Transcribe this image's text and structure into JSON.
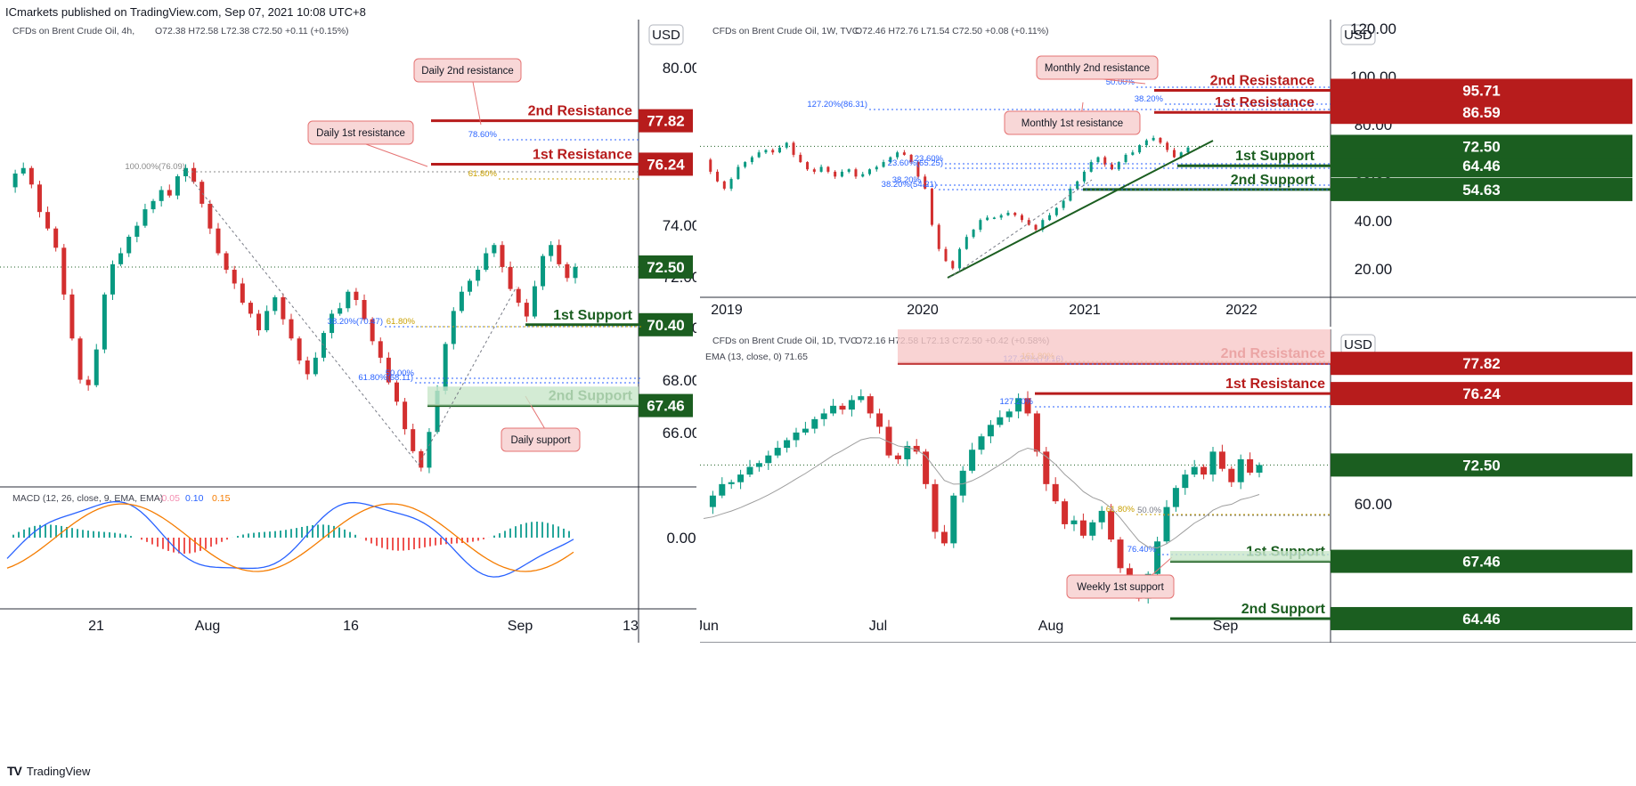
{
  "header": {
    "published": "ICmarkets published on TradingView.com, Sep 07, 2021 10:08 UTC+8"
  },
  "footer": {
    "brand": "TradingView"
  },
  "chart_data": [
    {
      "type": "candlestick",
      "title": "CFDs on Brent Crude Oil, 4h,",
      "ohlc": "O72.38  H72.58  L72.38  C72.50  +0.11 (+0.15%)",
      "currency": "USD",
      "ylim": [
        64.5,
        81.5
      ],
      "y_ticks": [
        "80.00",
        "74.00",
        "72.00",
        "70.00",
        "68.00",
        "66.00"
      ],
      "x_ticks": [
        "21",
        "Aug",
        "16",
        "Sep",
        "13"
      ],
      "levels": [
        {
          "name": "2nd Resistance",
          "value": "77.82",
          "kind": "resistance"
        },
        {
          "name": "1st Resistance",
          "value": "76.24",
          "kind": "resistance"
        },
        {
          "name": "1st Support",
          "value": "70.40",
          "kind": "support"
        },
        {
          "name": "2nd Support",
          "value": "67.46",
          "kind": "support"
        }
      ],
      "current_price": "72.50",
      "fib_labels": [
        "100.00%(76.09)",
        "78.60%",
        "61.80%",
        "38.20%(70.47)",
        "61.80%",
        "50.00%",
        "61.80%(68.11)"
      ],
      "callouts": [
        "Daily 2nd resistance",
        "Daily 1st resistance",
        "Daily support"
      ],
      "price_path": [
        75.4,
        75.9,
        76.1,
        75.5,
        74.5,
        73.9,
        73.2,
        71.5,
        69.9,
        68.4,
        68.2,
        69.5,
        71.5,
        72.6,
        73.0,
        73.6,
        74.0,
        74.6,
        74.9,
        75.3,
        75.1,
        75.8,
        76.1,
        75.6,
        74.8,
        73.9,
        73.0,
        72.4,
        71.9,
        71.2,
        70.8,
        70.2,
        70.9,
        71.4,
        70.6,
        69.9,
        69.1,
        68.6,
        69.2,
        70.1,
        70.8,
        71.0,
        71.6,
        71.3,
        70.6,
        69.8,
        69.2,
        68.3,
        67.6,
        66.6,
        65.8,
        65.2,
        66.5,
        68.0,
        69.7,
        70.9,
        71.6,
        72.0,
        72.4,
        73.0,
        73.3,
        72.5,
        71.7,
        71.2,
        70.7,
        71.8,
        72.9,
        73.3,
        72.6,
        72.1,
        72.5
      ],
      "macd": {
        "title": "MACD (12, 26, close, 9, EMA, EMA)",
        "values": [
          "-0.05",
          "0.10",
          "0.15"
        ],
        "tick": "0.00"
      }
    },
    {
      "type": "candlestick",
      "title": "CFDs on Brent Crude Oil, 1W, TVC",
      "ohlc": "O72.46  H72.76  L71.54  C72.50  +0.08 (+0.11%)",
      "currency": "USD",
      "ylim": [
        10,
        125
      ],
      "y_ticks": [
        "120.00",
        "100.00",
        "80.00",
        "60.00",
        "40.00",
        "20.00"
      ],
      "x_ticks": [
        "2019",
        "2020",
        "2021",
        "2022"
      ],
      "levels": [
        {
          "name": "2nd Resistance",
          "value": "95.71",
          "kind": "resistance"
        },
        {
          "name": "1st Resistance",
          "value": "86.59",
          "kind": "resistance"
        },
        {
          "name": "1st Support",
          "value": "64.46",
          "kind": "support"
        },
        {
          "name": "2nd Support",
          "value": "54.63",
          "kind": "support"
        }
      ],
      "current_price": "72.50",
      "fib_labels": [
        "50.00%",
        "38.20%",
        "127.20%(86.31)",
        "23.60%",
        "23.60%(65.25)",
        "38.20%",
        "38.20%(54.21)"
      ],
      "callouts": [
        "Monthly 2nd resistance",
        "Monthly 1st resistance"
      ],
      "price_path": [
        67,
        62,
        58,
        55,
        59,
        64,
        66,
        68,
        70,
        71,
        70,
        72,
        74,
        69,
        66,
        63,
        62,
        64,
        62,
        60,
        62,
        63,
        60,
        61,
        63,
        64,
        66,
        68,
        70,
        69,
        66,
        60,
        55,
        40,
        30,
        25,
        22,
        30,
        35,
        38,
        42,
        43,
        43,
        44,
        45,
        44,
        42,
        40,
        38,
        42,
        44,
        47,
        50,
        55,
        58,
        62,
        66,
        68,
        65,
        63,
        66,
        69,
        70,
        73,
        75,
        76,
        74,
        71,
        68,
        70,
        72
      ],
      "trendline_label": ""
    },
    {
      "type": "candlestick",
      "title": "CFDs on Brent Crude Oil, 1D, TVC",
      "ohlc": "O72.16  H72.58  L72.13  C72.50  +0.42 (+0.58%)",
      "ema": "EMA (13, close, 0)  71.65",
      "currency": "USD",
      "ylim": [
        63.2,
        79.6
      ],
      "y_ticks": [
        "60.00"
      ],
      "x_ticks": [
        "Jun",
        "Jul",
        "Aug",
        "Sep"
      ],
      "levels": [
        {
          "name": "2nd Resistance",
          "value": "77.82",
          "kind": "resistance"
        },
        {
          "name": "1st Resistance",
          "value": "76.24",
          "kind": "resistance"
        },
        {
          "name": "1st Support",
          "value": "67.46",
          "kind": "support"
        },
        {
          "name": "2nd Support",
          "value": "64.46",
          "kind": "support"
        }
      ],
      "current_price": "72.50",
      "fib_labels": [
        "127.20%(79.16)",
        "161.80%",
        "127.20%",
        "61.80%",
        "50.0%",
        "76.40%"
      ],
      "callouts": [
        "Weekly 1st support"
      ],
      "price_path": [
        70.3,
        70.9,
        71.5,
        71.6,
        72.0,
        72.4,
        72.6,
        73.0,
        73.4,
        73.8,
        74.2,
        74.4,
        74.9,
        75.2,
        75.6,
        75.4,
        75.9,
        76.1,
        75.2,
        74.5,
        73.0,
        72.8,
        73.5,
        73.2,
        71.5,
        69.0,
        68.4,
        70.9,
        72.2,
        73.3,
        74.0,
        74.6,
        75.0,
        75.3,
        76.0,
        75.2,
        73.2,
        71.5,
        70.6,
        69.4,
        69.6,
        68.8,
        69.5,
        70.1,
        68.6,
        67.1,
        66.0,
        65.5,
        66.8,
        68.5,
        70.3,
        71.3,
        72.0,
        72.4,
        72.0,
        73.2,
        72.3,
        71.6,
        72.8,
        72.1,
        72.5
      ]
    }
  ]
}
